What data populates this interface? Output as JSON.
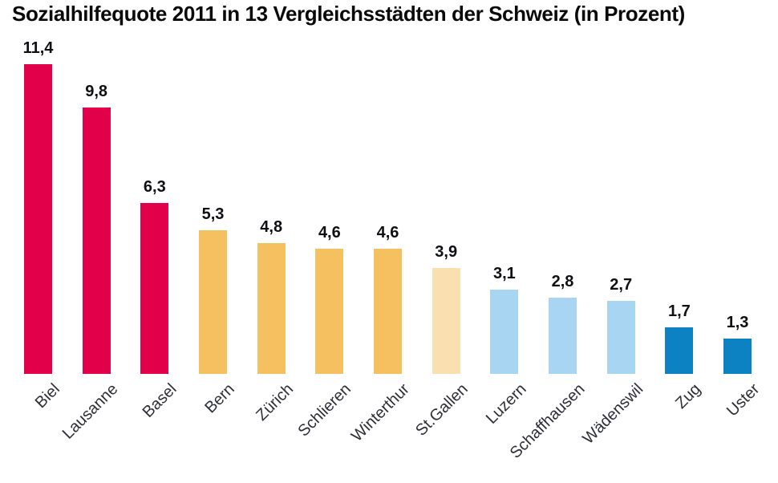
{
  "title": "Sozialhilfequote 2011 in 13 Vergleichsstädten der Schweiz (in Prozent)",
  "chart_data": {
    "type": "bar",
    "title": "Sozialhilfequote 2011 in 13 Vergleichsstädten der Schweiz (in Prozent)",
    "categories": [
      "Biel",
      "Lausanne",
      "Basel",
      "Bern",
      "Zürich",
      "Schlieren",
      "Winterthur",
      "St.Gallen",
      "Luzern",
      "Schaffhausen",
      "Wädenswil",
      "Zug",
      "Uster"
    ],
    "values": [
      11.4,
      9.8,
      6.3,
      5.3,
      4.8,
      4.6,
      4.6,
      3.9,
      3.1,
      2.8,
      2.7,
      1.7,
      1.3
    ],
    "value_labels": [
      "11,4",
      "9,8",
      "6,3",
      "5,3",
      "4,8",
      "4,6",
      "4,6",
      "3,9",
      "3,1",
      "2,8",
      "2,7",
      "1,7",
      "1,3"
    ],
    "bar_colors": [
      "#E2004B",
      "#E2004B",
      "#E2004B",
      "#F5C160",
      "#F5C160",
      "#F5C160",
      "#F5C160",
      "#FAE0B0",
      "#A8D6F2",
      "#A8D6F2",
      "#A8D6F2",
      "#0C82C2",
      "#0C82C2"
    ],
    "xlabel": "",
    "ylabel": "",
    "ylim": [
      0,
      12
    ],
    "grid": false,
    "legend": null,
    "decimal_separator": ",",
    "x_tick_rotation_deg": 45,
    "colors_meaning": {
      "#E2004B": "high-rate-red",
      "#F5C160": "upper-mid-orange",
      "#FAE0B0": "mid-cream",
      "#A8D6F2": "lower-mid-lightblue",
      "#0C82C2": "low-rate-blue"
    }
  }
}
